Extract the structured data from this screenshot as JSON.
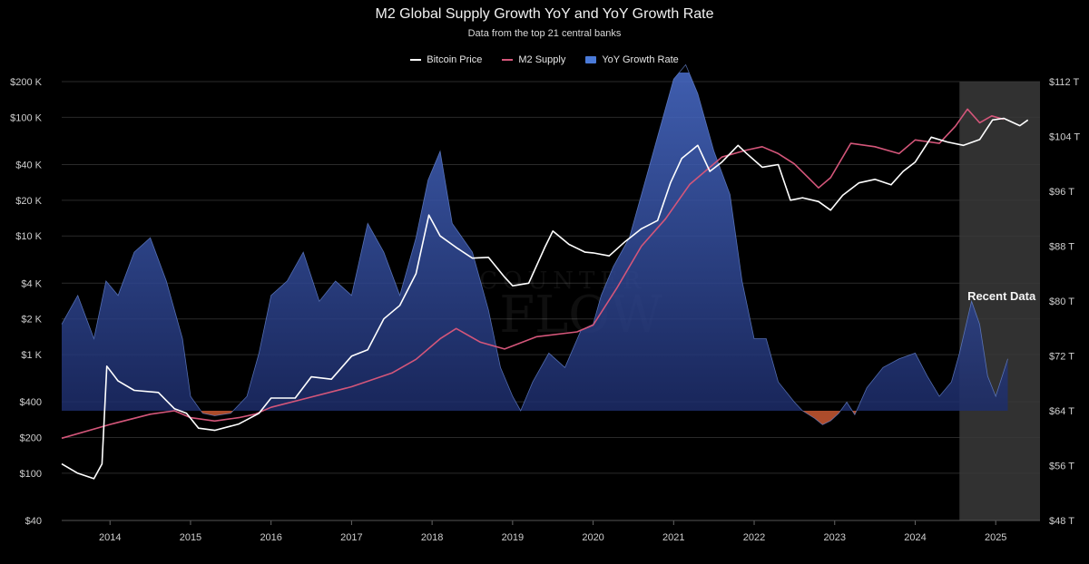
{
  "chart_data": {
    "type": "line",
    "title": "M2 Global Supply Growth YoY and YoY Growth Rate",
    "subtitle": "Data from the top 21 central banks",
    "legend": [
      {
        "name": "Bitcoin Price",
        "color": "#ffffff",
        "style": "line"
      },
      {
        "name": "M2 Supply",
        "color": "#d4567a",
        "style": "line"
      },
      {
        "name": "YoY Growth Rate",
        "color": "#4a7ad8",
        "style": "area"
      }
    ],
    "legend_position": "top-center",
    "grid": true,
    "x_ticks": [
      "2014",
      "2015",
      "2016",
      "2017",
      "2018",
      "2019",
      "2020",
      "2021",
      "2022",
      "2023",
      "2024",
      "2025"
    ],
    "xlim": [
      2013.4,
      2025.55
    ],
    "y_left": {
      "scale": "log",
      "ticks": [
        {
          "value": 40,
          "label": "$40"
        },
        {
          "value": 100,
          "label": "$100"
        },
        {
          "value": 200,
          "label": "$200"
        },
        {
          "value": 400,
          "label": "$400"
        },
        {
          "value": 1000,
          "label": "$1 K"
        },
        {
          "value": 2000,
          "label": "$2 K"
        },
        {
          "value": 4000,
          "label": "$4 K"
        },
        {
          "value": 10000,
          "label": "$10 K"
        },
        {
          "value": 20000,
          "label": "$20 K"
        },
        {
          "value": 40000,
          "label": "$40 K"
        },
        {
          "value": 100000,
          "label": "$100 K"
        },
        {
          "value": 200000,
          "label": "$200 K"
        }
      ]
    },
    "y_right": {
      "scale": "linear",
      "ylim": [
        48,
        112
      ],
      "ticks": [
        {
          "value": 48,
          "label": "$48 T"
        },
        {
          "value": 56,
          "label": "$56 T"
        },
        {
          "value": 64,
          "label": "$64 T"
        },
        {
          "value": 72,
          "label": "$72 T"
        },
        {
          "value": 80,
          "label": "$80 T"
        },
        {
          "value": 88,
          "label": "$88 T"
        },
        {
          "value": 96,
          "label": "$96 T"
        },
        {
          "value": 104,
          "label": "$104 T"
        },
        {
          "value": 112,
          "label": "$112 T"
        }
      ]
    },
    "highlight": {
      "label": "Recent Data",
      "x_start": 2024.55,
      "x_end": 2025.55
    },
    "series": [
      {
        "name": "Bitcoin Price",
        "axis": "left",
        "x": [
          2013.4,
          2013.6,
          2013.8,
          2013.9,
          2013.96,
          2014.1,
          2014.3,
          2014.6,
          2014.8,
          2014.95,
          2015.1,
          2015.3,
          2015.6,
          2015.85,
          2016.0,
          2016.3,
          2016.5,
          2016.75,
          2017.0,
          2017.2,
          2017.4,
          2017.6,
          2017.8,
          2017.96,
          2018.1,
          2018.3,
          2018.5,
          2018.7,
          2018.9,
          2019.0,
          2019.2,
          2019.4,
          2019.5,
          2019.7,
          2019.9,
          2020.0,
          2020.2,
          2020.4,
          2020.6,
          2020.8,
          2020.96,
          2021.1,
          2021.3,
          2021.45,
          2021.6,
          2021.8,
          2021.9,
          2022.1,
          2022.3,
          2022.45,
          2022.6,
          2022.8,
          2022.95,
          2023.1,
          2023.3,
          2023.5,
          2023.7,
          2023.85,
          2024.0,
          2024.2,
          2024.4,
          2024.6,
          2024.8,
          2024.96,
          2025.1,
          2025.3,
          2025.4
        ],
        "values": [
          120,
          100,
          90,
          120,
          800,
          600,
          500,
          480,
          350,
          320,
          240,
          230,
          260,
          320,
          430,
          430,
          650,
          620,
          970,
          1100,
          2000,
          2600,
          4800,
          15000,
          10000,
          8000,
          6500,
          6600,
          4500,
          3800,
          4000,
          8000,
          11000,
          8500,
          7300,
          7200,
          6800,
          9000,
          11500,
          13500,
          28000,
          45000,
          58000,
          35000,
          42000,
          58000,
          50000,
          38000,
          40000,
          20000,
          21000,
          19500,
          16500,
          22000,
          28000,
          30000,
          27000,
          35000,
          42000,
          68000,
          62000,
          58000,
          65000,
          95000,
          98000,
          85000,
          95000
        ]
      },
      {
        "name": "M2 Supply",
        "axis": "right",
        "x": [
          2013.4,
          2014.0,
          2014.5,
          2014.8,
          2015.0,
          2015.3,
          2015.6,
          2015.8,
          2016.0,
          2016.5,
          2017.0,
          2017.5,
          2017.8,
          2018.1,
          2018.3,
          2018.6,
          2018.9,
          2019.3,
          2019.8,
          2020.0,
          2020.3,
          2020.6,
          2020.9,
          2021.2,
          2021.6,
          2021.9,
          2022.1,
          2022.3,
          2022.5,
          2022.8,
          2022.95,
          2023.2,
          2023.5,
          2023.8,
          2024.0,
          2024.3,
          2024.5,
          2024.65,
          2024.8,
          2024.95,
          2025.1
        ],
        "values": [
          60.0,
          62.0,
          63.5,
          64.0,
          63.0,
          62.5,
          63.0,
          63.5,
          64.5,
          66.0,
          67.5,
          69.5,
          71.5,
          74.5,
          76.0,
          74.0,
          73.0,
          74.8,
          75.5,
          76.5,
          82.0,
          88.0,
          92.0,
          97.0,
          101.0,
          102.0,
          102.5,
          101.5,
          100.0,
          96.5,
          98.0,
          103.0,
          102.5,
          101.5,
          103.5,
          103.0,
          105.5,
          108.0,
          106.0,
          107.0,
          106.5
        ]
      },
      {
        "name": "YoY Growth Rate",
        "axis": "baseline_relative",
        "unit": "relative",
        "x": [
          2013.4,
          2013.6,
          2013.8,
          2013.95,
          2014.1,
          2014.3,
          2014.5,
          2014.7,
          2014.9,
          2015.0,
          2015.15,
          2015.3,
          2015.5,
          2015.7,
          2015.85,
          2016.0,
          2016.2,
          2016.4,
          2016.6,
          2016.8,
          2017.0,
          2017.2,
          2017.4,
          2017.6,
          2017.8,
          2017.95,
          2018.1,
          2018.25,
          2018.5,
          2018.7,
          2018.85,
          2019.0,
          2019.1,
          2019.25,
          2019.45,
          2019.65,
          2019.85,
          2020.0,
          2020.1,
          2020.25,
          2020.45,
          2020.65,
          2020.85,
          2021.0,
          2021.15,
          2021.3,
          2021.5,
          2021.7,
          2021.85,
          2022.0,
          2022.15,
          2022.3,
          2022.5,
          2022.6,
          2022.75,
          2022.85,
          2022.95,
          2023.05,
          2023.15,
          2023.25,
          2023.4,
          2023.6,
          2023.8,
          2024.0,
          2024.15,
          2024.3,
          2024.45,
          2024.55,
          2024.7,
          2024.8,
          2024.9,
          2025.0,
          2025.15
        ],
        "values": [
          0.3,
          0.4,
          0.25,
          0.45,
          0.4,
          0.55,
          0.6,
          0.45,
          0.25,
          0.05,
          -0.05,
          -0.1,
          -0.05,
          0.05,
          0.2,
          0.4,
          0.45,
          0.55,
          0.38,
          0.45,
          0.4,
          0.65,
          0.55,
          0.4,
          0.6,
          0.8,
          0.9,
          0.65,
          0.55,
          0.35,
          0.15,
          0.05,
          0.0,
          0.1,
          0.2,
          0.15,
          0.28,
          0.3,
          0.4,
          0.5,
          0.6,
          0.8,
          1.0,
          1.15,
          1.2,
          1.1,
          0.9,
          0.75,
          0.45,
          0.25,
          0.25,
          0.1,
          0.03,
          0.0,
          -0.15,
          -0.28,
          -0.2,
          -0.05,
          0.03,
          -0.08,
          0.08,
          0.15,
          0.18,
          0.2,
          0.12,
          0.05,
          0.1,
          0.2,
          0.38,
          0.3,
          0.12,
          0.05,
          0.18
        ]
      }
    ],
    "annotations": [
      "Recent Data"
    ]
  },
  "watermark": {
    "line1": "COUNTER",
    "line2": "FLOW"
  }
}
